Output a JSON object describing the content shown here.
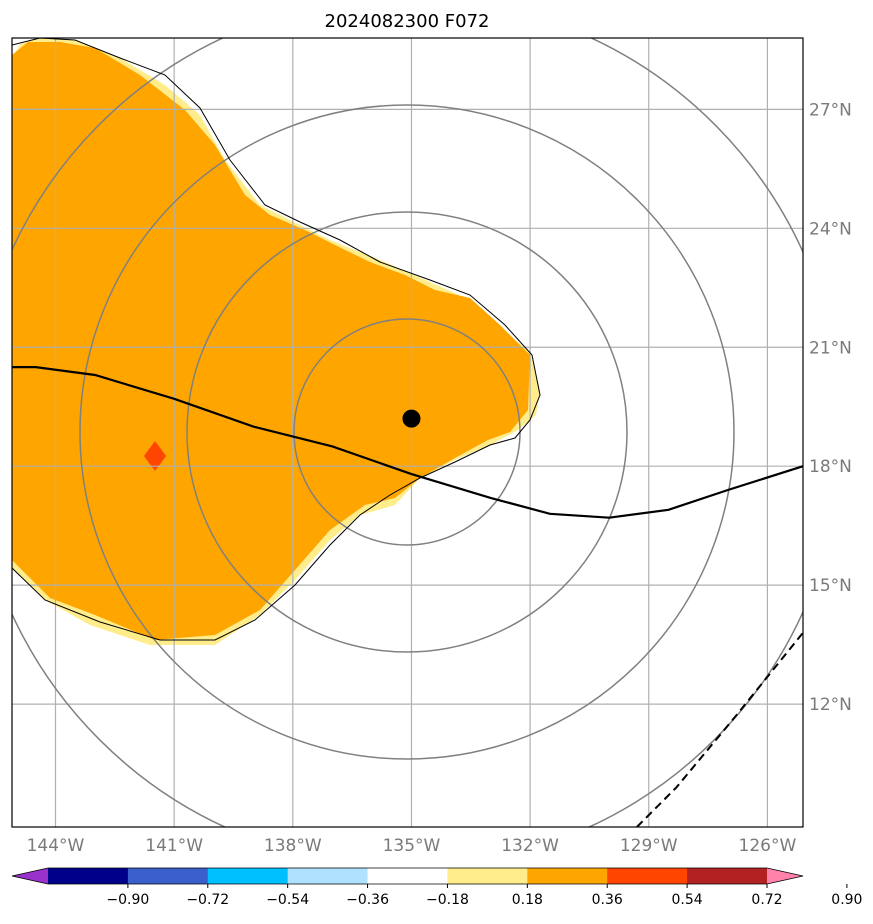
{
  "title": "2024082300 F072",
  "lon_labels": [
    {
      "lon": -144,
      "label": "144°W"
    },
    {
      "lon": -141,
      "label": "141°W"
    },
    {
      "lon": -138,
      "label": "138°W"
    },
    {
      "lon": -135,
      "label": "135°W"
    },
    {
      "lon": -132,
      "label": "132°W"
    },
    {
      "lon": -129,
      "label": "129°W"
    },
    {
      "lon": -126,
      "label": "126°W"
    }
  ],
  "lat_labels": [
    {
      "lat": 27,
      "label": "27°N"
    },
    {
      "lat": 24,
      "label": "24°N"
    },
    {
      "lat": 21,
      "label": "21°N"
    },
    {
      "lat": 18,
      "label": "18°N"
    },
    {
      "lat": 15,
      "label": "15°N"
    },
    {
      "lat": 12,
      "label": "12°N"
    }
  ],
  "extent": {
    "lon": [
      -145.1,
      -125.1
    ],
    "lat": [
      8.9,
      28.8
    ]
  },
  "storm_center": {
    "lon": -135.0,
    "lat": 19.2
  },
  "range_rings": 4,
  "colorbar": {
    "ticks": [
      "−0.90",
      "−0.72",
      "−0.54",
      "−0.36",
      "−0.18",
      "0.18",
      "0.36",
      "0.54",
      "0.72",
      "0.90"
    ],
    "colors": [
      "#9932cc",
      "#00008b",
      "#3a5fcd",
      "#00bfff",
      "#b0e2ff",
      "#ffffff",
      "#ffec8b",
      "#ffa500",
      "#ff4500",
      "#b22222",
      "#ff82ab"
    ]
  },
  "fields": {
    "main_area_color": "#ffa500",
    "edge_color": "#ffec8b",
    "spot_color": "#ff4500"
  },
  "track": [
    {
      "lon": -145.1,
      "lat": 20.5
    },
    {
      "lon": -144.5,
      "lat": 20.5
    },
    {
      "lon": -143.0,
      "lat": 20.3
    },
    {
      "lon": -141.0,
      "lat": 19.7
    },
    {
      "lon": -139.0,
      "lat": 19.0
    },
    {
      "lon": -137.0,
      "lat": 18.5
    },
    {
      "lon": -135.0,
      "lat": 17.8
    },
    {
      "lon": -133.0,
      "lat": 17.2
    },
    {
      "lon": -131.5,
      "lat": 16.8
    },
    {
      "lon": -130.0,
      "lat": 16.7
    },
    {
      "lon": -128.5,
      "lat": 16.9
    },
    {
      "lon": -127.0,
      "lat": 17.4
    },
    {
      "lon": -125.1,
      "lat": 18.0
    }
  ],
  "dashed_line": [
    {
      "lon": -129.3,
      "lat": 8.9
    },
    {
      "lon": -128.3,
      "lat": 9.9
    },
    {
      "lon": -126.8,
      "lat": 11.7
    },
    {
      "lon": -125.1,
      "lat": 13.8
    }
  ]
}
